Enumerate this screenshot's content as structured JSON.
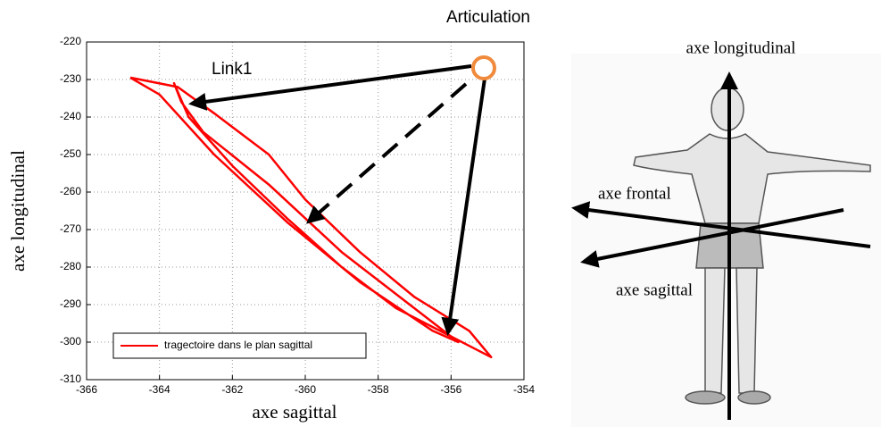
{
  "chart_data": {
    "type": "line",
    "title": "Articulation",
    "xlabel": "axe sagittal",
    "ylabel": "axe longitudinal",
    "annotation": "Link1",
    "xlim": [
      -366,
      -354
    ],
    "xticks": [
      -366,
      -364,
      -362,
      -360,
      -358,
      -356,
      -354
    ],
    "ylim": [
      -310,
      -220
    ],
    "yticks": [
      -310,
      -300,
      -290,
      -280,
      -270,
      -260,
      -250,
      -240,
      -230,
      -220
    ],
    "grid": true,
    "legend": "lower left",
    "x": [
      -364.8,
      -363.5,
      -362.5,
      -361,
      -360,
      -358.5,
      -357,
      -355.5,
      -354.9,
      -355.5,
      -357.5,
      -359,
      -360.5,
      -362,
      -363.2,
      -363.6,
      -363.4,
      -362.8,
      -361,
      -359,
      -357,
      -355.8,
      -356.5,
      -358.5,
      -360.5,
      -362.5,
      -364,
      -364.8
    ],
    "series": [
      {
        "name": "tragectoire dans le plan sagittal",
        "color": "#ff0000",
        "values": [
          -229.5,
          -232,
          -239,
          -250,
          -262,
          -276,
          -288,
          -297,
          -304,
          -301,
          -291,
          -280,
          -267,
          -253,
          -240,
          -231,
          -236,
          -244,
          -258,
          -276,
          -291,
          -300,
          -297,
          -284,
          -268,
          -250,
          -234,
          -229.5
        ]
      }
    ]
  },
  "diagram": {
    "labels": [
      "axe longitudinal",
      "axe frontal",
      "axe sagittal"
    ]
  }
}
